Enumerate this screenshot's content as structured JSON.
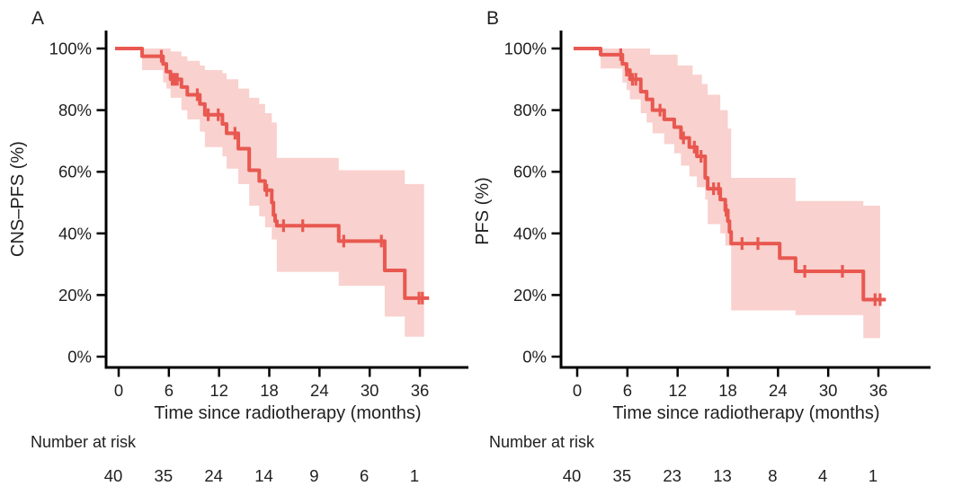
{
  "figure": {
    "background": "#ffffff",
    "text_color": "#1f1f1f",
    "axis_color": "#000000",
    "curve_color": "#e85850",
    "censor_color": "#e85850",
    "ci_band_color": "#f9d1ce"
  },
  "chart_data": [
    {
      "type": "line",
      "subtype": "kaplan-meier-step",
      "panel_label": "A",
      "ylabel": "CNS–PFS (%)",
      "xlabel": "Time since radiotherapy (months)",
      "xlim": [
        0,
        37.5
      ],
      "ylim": [
        0,
        100
      ],
      "x_ticks": [
        0,
        6,
        12,
        18,
        24,
        30,
        36
      ],
      "y_ticks": [
        {
          "value": 100,
          "label": "100%"
        },
        {
          "value": 80,
          "label": "80%"
        },
        {
          "value": 60,
          "label": "60%"
        },
        {
          "value": 40,
          "label": "40%"
        },
        {
          "value": 20,
          "label": "20%"
        },
        {
          "value": 0,
          "label": "0%"
        }
      ],
      "km_steps": [
        [
          0,
          100
        ],
        [
          2.8,
          97.5
        ],
        [
          5.3,
          95
        ],
        [
          5.7,
          92.5
        ],
        [
          6.2,
          90
        ],
        [
          7.5,
          87.5
        ],
        [
          8.2,
          85
        ],
        [
          9.7,
          82
        ],
        [
          10.3,
          78.5
        ],
        [
          12.4,
          75.5
        ],
        [
          12.9,
          72.5
        ],
        [
          14.3,
          67.5
        ],
        [
          15.6,
          60.5
        ],
        [
          16.8,
          57
        ],
        [
          17.5,
          54
        ],
        [
          18.3,
          50
        ],
        [
          18.5,
          46
        ],
        [
          18.7,
          44
        ],
        [
          18.9,
          42.5
        ],
        [
          26.3,
          37.5
        ],
        [
          31.8,
          28
        ],
        [
          34.2,
          19
        ]
      ],
      "curve_end_time": 37.1,
      "censor_marks": [
        [
          5.1,
          97.5
        ],
        [
          6.4,
          90
        ],
        [
          6.7,
          90
        ],
        [
          7.0,
          90
        ],
        [
          9.4,
          85
        ],
        [
          10.7,
          78.5
        ],
        [
          11.9,
          78.5
        ],
        [
          13.9,
          72.5
        ],
        [
          17.7,
          54
        ],
        [
          19.7,
          42.5
        ],
        [
          22.0,
          42.5
        ],
        [
          26.9,
          37.5
        ],
        [
          31.4,
          37.5
        ],
        [
          35.9,
          19
        ],
        [
          36.3,
          19
        ]
      ],
      "ci_upper": [
        [
          2.8,
          100
        ],
        [
          6.2,
          99
        ],
        [
          7.5,
          97.5
        ],
        [
          8.2,
          96
        ],
        [
          9.7,
          94.5
        ],
        [
          10.3,
          93
        ],
        [
          12.4,
          92
        ],
        [
          12.9,
          90
        ],
        [
          14.3,
          87
        ],
        [
          15.6,
          84
        ],
        [
          16.8,
          82
        ],
        [
          17.5,
          79
        ],
        [
          18.3,
          76
        ],
        [
          18.9,
          64.5
        ],
        [
          26.3,
          60.5
        ],
        [
          34.2,
          56
        ]
      ],
      "ci_lower": [
        [
          2.8,
          93
        ],
        [
          5.3,
          89
        ],
        [
          5.7,
          87
        ],
        [
          6.2,
          84
        ],
        [
          7.5,
          80
        ],
        [
          8.2,
          77
        ],
        [
          9.7,
          73
        ],
        [
          10.3,
          68
        ],
        [
          12.4,
          65
        ],
        [
          12.9,
          61
        ],
        [
          14.3,
          56
        ],
        [
          15.6,
          49
        ],
        [
          16.8,
          45.5
        ],
        [
          17.5,
          42
        ],
        [
          18.3,
          38
        ],
        [
          18.9,
          27.5
        ],
        [
          26.3,
          23
        ],
        [
          31.8,
          13
        ],
        [
          34.2,
          6.5
        ]
      ],
      "ci_end_time": 36.5,
      "risk_table": {
        "label": "Number at risk",
        "times": [
          0,
          6,
          12,
          18,
          24,
          30,
          36
        ],
        "counts": [
          40,
          35,
          24,
          14,
          9,
          6,
          1
        ]
      }
    },
    {
      "type": "line",
      "subtype": "kaplan-meier-step",
      "panel_label": "B",
      "ylabel": "PFS (%)",
      "xlabel": "Time since radiotherapy (months)",
      "xlim": [
        0,
        37.5
      ],
      "ylim": [
        0,
        100
      ],
      "x_ticks": [
        0,
        6,
        12,
        18,
        24,
        30,
        36
      ],
      "y_ticks": [
        {
          "value": 100,
          "label": "100%"
        },
        {
          "value": 80,
          "label": "80%"
        },
        {
          "value": 60,
          "label": "60%"
        },
        {
          "value": 40,
          "label": "40%"
        },
        {
          "value": 20,
          "label": "20%"
        },
        {
          "value": 0,
          "label": "0%"
        }
      ],
      "km_steps": [
        [
          0,
          100
        ],
        [
          2.8,
          98
        ],
        [
          5.4,
          95
        ],
        [
          5.9,
          93
        ],
        [
          6.3,
          90
        ],
        [
          7.6,
          86
        ],
        [
          8.3,
          83.5
        ],
        [
          9.0,
          80
        ],
        [
          10.4,
          77
        ],
        [
          11.6,
          74.5
        ],
        [
          12.4,
          71
        ],
        [
          13.4,
          68
        ],
        [
          14.3,
          65
        ],
        [
          15.3,
          58
        ],
        [
          15.6,
          54.5
        ],
        [
          17.1,
          51
        ],
        [
          17.7,
          47.5
        ],
        [
          18.0,
          44
        ],
        [
          18.2,
          40.5
        ],
        [
          18.4,
          36.7
        ],
        [
          24.2,
          32
        ],
        [
          26.1,
          27.7
        ],
        [
          34.2,
          18.5
        ]
      ],
      "curve_end_time": 36.9,
      "censor_marks": [
        [
          5.2,
          98
        ],
        [
          5.9,
          93
        ],
        [
          6.6,
          90
        ],
        [
          7.0,
          90
        ],
        [
          9.9,
          80
        ],
        [
          12.7,
          71
        ],
        [
          14.0,
          68
        ],
        [
          14.8,
          65
        ],
        [
          16.3,
          54.5
        ],
        [
          16.9,
          54.5
        ],
        [
          17.8,
          47.5
        ],
        [
          19.7,
          36.7
        ],
        [
          21.6,
          36.7
        ],
        [
          27.2,
          27.7
        ],
        [
          31.7,
          27.7
        ],
        [
          35.6,
          18.5
        ],
        [
          36.2,
          18.5
        ]
      ],
      "ci_upper": [
        [
          2.8,
          100
        ],
        [
          8.7,
          98
        ],
        [
          12.0,
          94.5
        ],
        [
          13.8,
          91.5
        ],
        [
          14.9,
          88.5
        ],
        [
          15.6,
          85
        ],
        [
          17.1,
          80
        ],
        [
          18.0,
          74
        ],
        [
          18.4,
          58
        ],
        [
          26.1,
          50.5
        ],
        [
          34.2,
          49
        ]
      ],
      "ci_lower": [
        [
          2.8,
          93.5
        ],
        [
          5.4,
          89
        ],
        [
          5.9,
          86.5
        ],
        [
          6.3,
          83.5
        ],
        [
          7.6,
          79
        ],
        [
          8.3,
          76
        ],
        [
          9.0,
          72.5
        ],
        [
          10.4,
          69
        ],
        [
          11.6,
          66
        ],
        [
          12.4,
          62
        ],
        [
          13.4,
          58.5
        ],
        [
          14.3,
          55
        ],
        [
          15.3,
          51
        ],
        [
          15.6,
          43
        ],
        [
          17.1,
          40
        ],
        [
          17.7,
          36
        ],
        [
          18.4,
          15
        ],
        [
          26.1,
          13.5
        ],
        [
          34.2,
          6
        ]
      ],
      "ci_end_time": 36.2,
      "risk_table": {
        "label": "Number at risk",
        "times": [
          0,
          6,
          12,
          18,
          24,
          30,
          36
        ],
        "counts": [
          40,
          35,
          23,
          13,
          8,
          4,
          1
        ]
      }
    }
  ]
}
